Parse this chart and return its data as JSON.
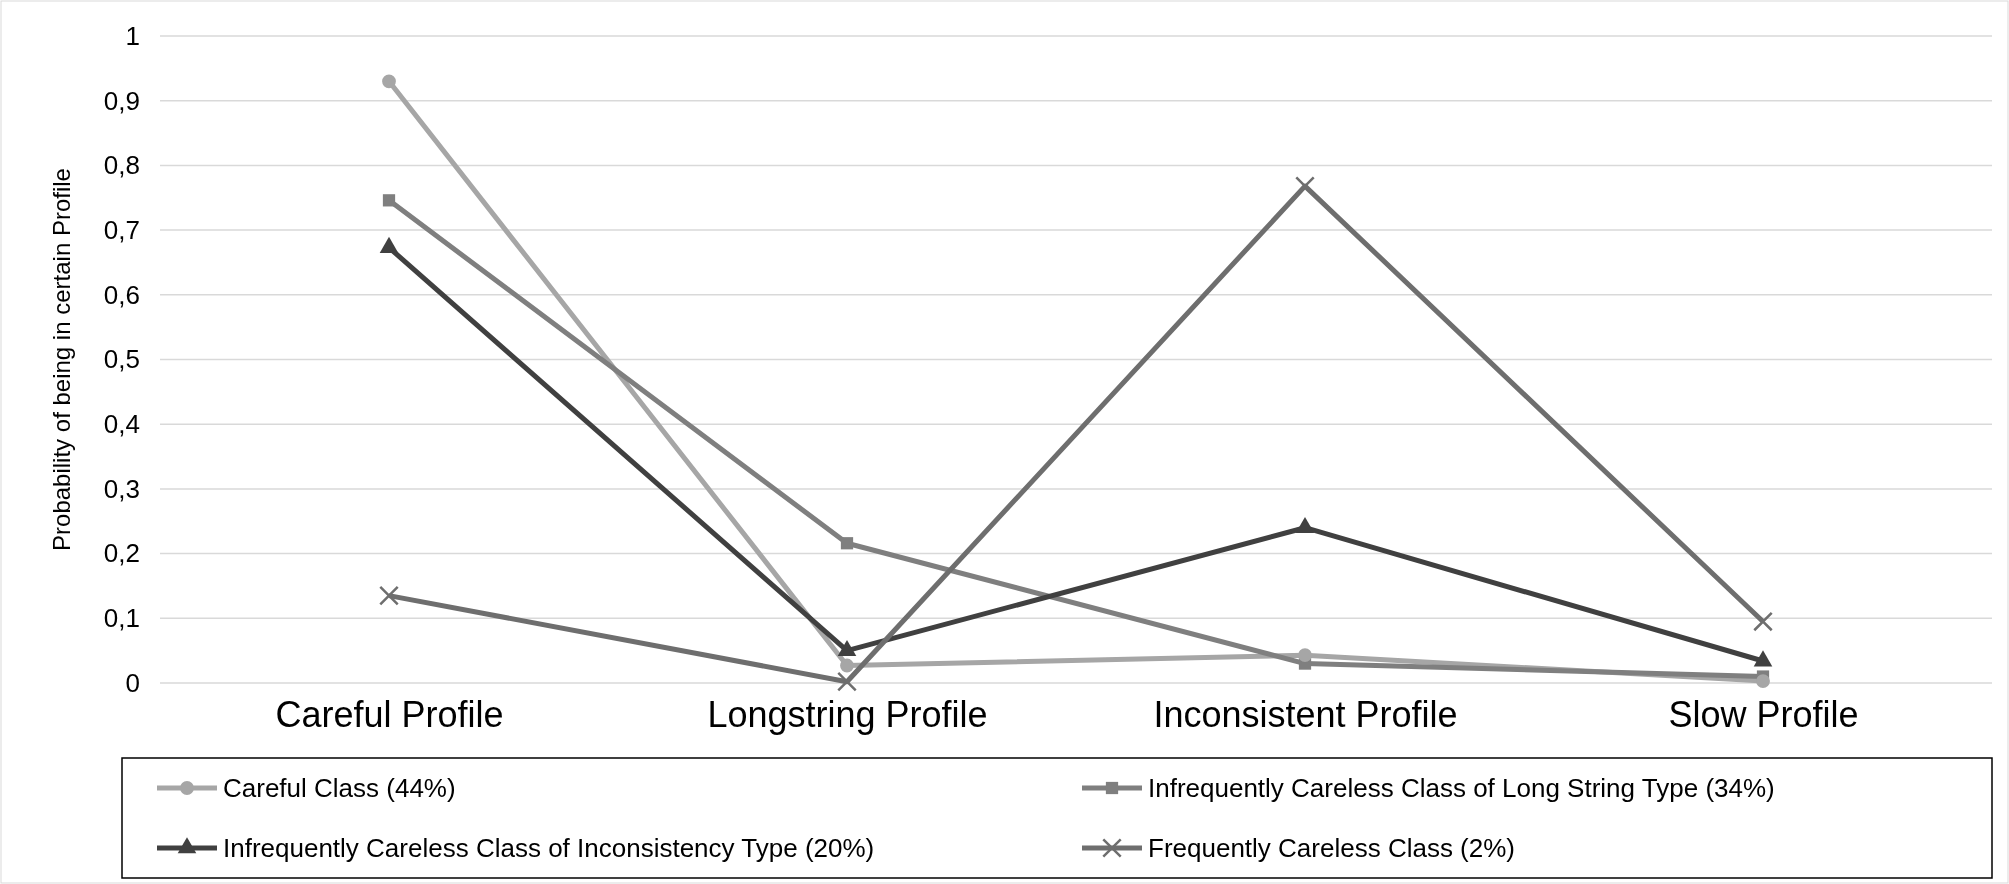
{
  "chart_data": {
    "type": "line",
    "ylabel": "Probability of being in certain Profile",
    "categories": [
      "Careful Profile",
      "Longstring Profile",
      "Inconsistent Profile",
      "Slow Profile"
    ],
    "series": [
      {
        "name": "Careful Class (44%)",
        "color": "#a6a6a6",
        "marker": "circle",
        "values": [
          0.93,
          0.027,
          0.043,
          0.003
        ]
      },
      {
        "name": "Infrequently Careless Class of Long String Type (34%)",
        "color": "#7f7f7f",
        "marker": "square",
        "values": [
          0.746,
          0.216,
          0.03,
          0.01
        ]
      },
      {
        "name": "Infrequently Careless Class of Inconsistency Type (20%)",
        "color": "#404040",
        "marker": "triangle",
        "values": [
          0.673,
          0.05,
          0.24,
          0.034
        ]
      },
      {
        "name": "Frequently Careless Class (2%)",
        "color": "#6e6e6e",
        "marker": "cross",
        "values": [
          0.135,
          0.002,
          0.768,
          0.095
        ]
      }
    ],
    "ylim": [
      0,
      1
    ],
    "yticks": [
      {
        "value": 0,
        "label": "0"
      },
      {
        "value": 0.1,
        "label": "0,1"
      },
      {
        "value": 0.2,
        "label": "0,2"
      },
      {
        "value": 0.3,
        "label": "0,3"
      },
      {
        "value": 0.4,
        "label": "0,4"
      },
      {
        "value": 0.5,
        "label": "0,5"
      },
      {
        "value": 0.6,
        "label": "0,6"
      },
      {
        "value": 0.7,
        "label": "0,7"
      },
      {
        "value": 0.8,
        "label": "0,8"
      },
      {
        "value": 0.9,
        "label": "0,9"
      },
      {
        "value": 1,
        "label": "1"
      }
    ],
    "grid": "y",
    "legend": "bottom"
  }
}
